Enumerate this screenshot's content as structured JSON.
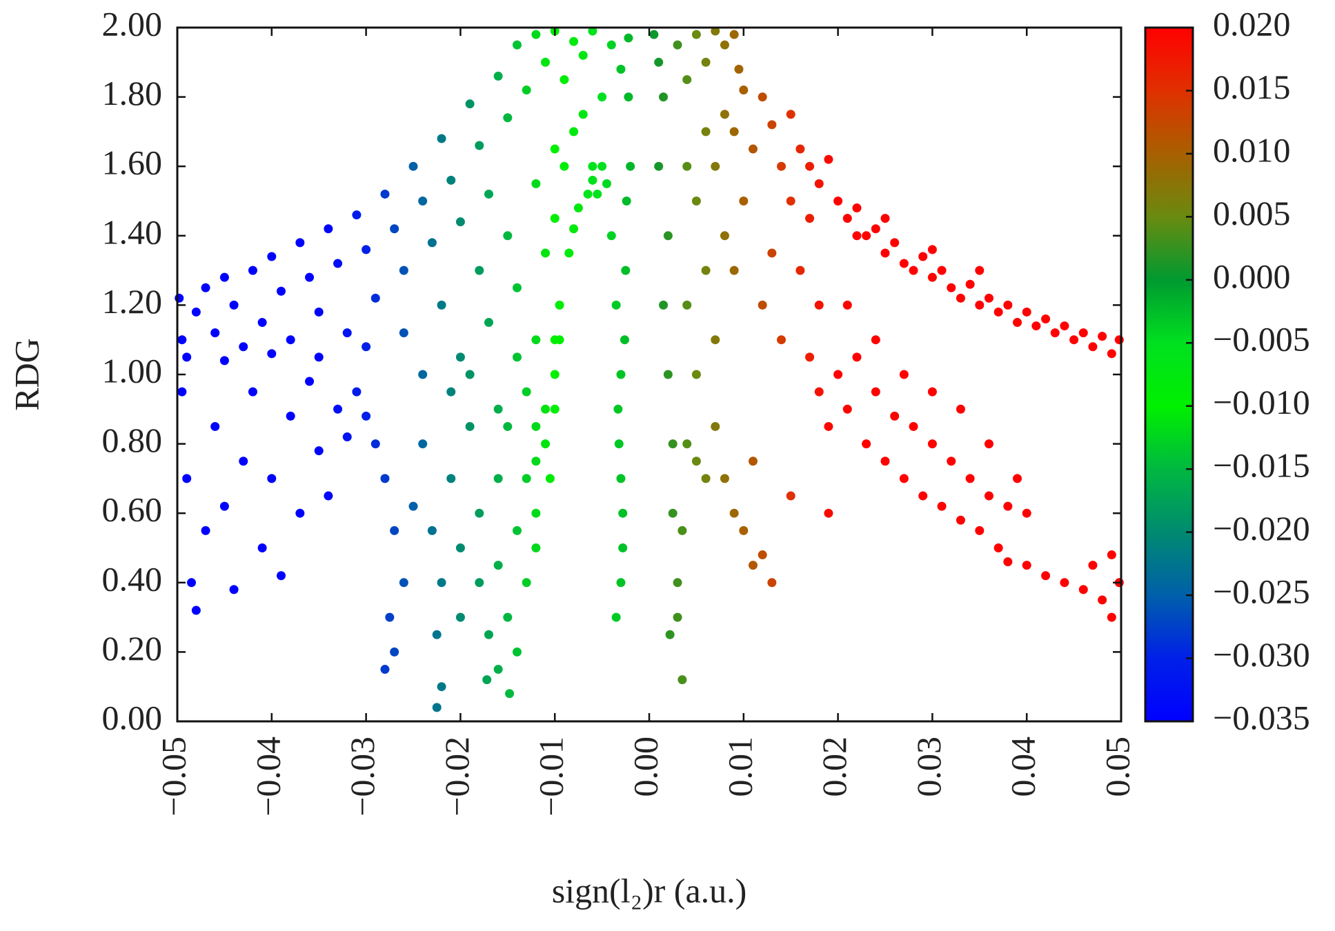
{
  "chart_data": {
    "type": "scatter",
    "x_label": "sign(l₂)r (a.u.)",
    "y_label": "RDG",
    "xlim": [
      -0.05,
      0.05
    ],
    "ylim": [
      0,
      2
    ],
    "xticks": [
      {
        "value": -0.05,
        "label": "−0.05"
      },
      {
        "value": -0.04,
        "label": "−0.04"
      },
      {
        "value": -0.03,
        "label": "−0.03"
      },
      {
        "value": -0.02,
        "label": "−0.02"
      },
      {
        "value": -0.01,
        "label": "−0.01"
      },
      {
        "value": 0,
        "label": "0.00"
      },
      0.01,
      0.02,
      0.03,
      0.04,
      0.05
    ],
    "yticks": [
      {
        "value": 0,
        "label": "0.00"
      },
      {
        "value": 0.2,
        "label": "0.20"
      },
      {
        "value": 0.4,
        "label": "0.40"
      },
      {
        "value": 0.6,
        "label": "0.60"
      },
      {
        "value": 0.8,
        "label": "0.80"
      },
      {
        "value": 1,
        "label": "1.00"
      },
      {
        "value": 1.2,
        "label": "1.20"
      },
      {
        "value": 1.4,
        "label": "1.40"
      },
      {
        "value": 1.6,
        "label": "1.60"
      },
      {
        "value": 1.8,
        "label": "1.80"
      },
      {
        "value": 2,
        "label": "2.00"
      }
    ],
    "colorbar": {
      "lim": [
        -0.035,
        0.02
      ],
      "ticks": [
        {
          "value": 0.02,
          "label": "0.020"
        },
        0.015,
        {
          "value": 0.01,
          "label": "0.010"
        },
        0.005,
        {
          "value": 0,
          "label": "0.000"
        },
        {
          "value": -0.005,
          "label": "−0.005"
        },
        {
          "value": -0.01,
          "label": "−0.010"
        },
        {
          "value": -0.015,
          "label": "−0.015"
        },
        {
          "value": -0.02,
          "label": "−0.020"
        },
        {
          "value": -0.025,
          "label": "−0.025"
        },
        {
          "value": -0.03,
          "label": "−0.030"
        },
        {
          "value": -0.035,
          "label": "−0.035"
        }
      ],
      "colors": [
        "#0000ff",
        "#0020e8",
        "#0060aa",
        "#008a70",
        "#00b840",
        "#00f000",
        "#00e020",
        "#009a30",
        "#6a8a10",
        "#a86000",
        "#e03000",
        "#ff0000"
      ]
    },
    "x": [
      -0.0498,
      -0.0495,
      -0.049,
      -0.048,
      -0.047,
      -0.046,
      -0.045,
      -0.044,
      -0.043,
      -0.042,
      -0.041,
      -0.04,
      -0.039,
      -0.038,
      -0.037,
      -0.036,
      -0.035,
      -0.034,
      -0.033,
      -0.032,
      -0.031,
      -0.03,
      -0.029,
      -0.028,
      -0.027,
      -0.026,
      -0.025,
      -0.024,
      -0.023,
      -0.022,
      -0.021,
      -0.02,
      -0.019,
      -0.018,
      -0.017,
      -0.016,
      -0.015,
      -0.014,
      -0.013,
      -0.012,
      -0.011,
      -0.01,
      -0.009,
      -0.008,
      -0.007,
      -0.006,
      -0.005,
      -0.004,
      -0.003,
      -0.0022,
      -0.045,
      -0.04,
      -0.035,
      -0.03,
      -0.026,
      -0.022,
      -0.018,
      -0.015,
      -0.012,
      -0.01,
      -0.02,
      -0.017,
      -0.014,
      -0.012,
      -0.011,
      -0.01,
      -0.009,
      -0.008,
      -0.007,
      -0.006,
      -0.024,
      -0.021,
      -0.019,
      -0.016,
      -0.014,
      -0.013,
      -0.012,
      -0.011,
      -0.01,
      -0.0095,
      -0.0495,
      -0.049,
      -0.0485,
      -0.048,
      -0.047,
      -0.046,
      -0.045,
      -0.044,
      -0.043,
      -0.042,
      -0.041,
      -0.04,
      -0.039,
      -0.038,
      -0.037,
      -0.036,
      -0.035,
      -0.034,
      -0.033,
      -0.032,
      -0.031,
      -0.03,
      -0.029,
      -0.028,
      -0.027,
      -0.0275,
      -0.027,
      -0.028,
      -0.026,
      -0.025,
      -0.024,
      -0.023,
      -0.022,
      -0.0225,
      -0.022,
      -0.0225,
      -0.021,
      -0.02,
      -0.02,
      -0.019,
      -0.018,
      -0.018,
      -0.017,
      -0.0172,
      -0.016,
      -0.016,
      -0.015,
      -0.0148,
      -0.015,
      -0.014,
      -0.013,
      -0.013,
      -0.012,
      -0.012,
      -0.011,
      -0.01,
      -0.0105,
      -0.012,
      -0.014,
      -0.016,
      -0.0095,
      -0.0085,
      -0.0075,
      -0.01,
      -0.0065,
      -0.006,
      -0.0055,
      -0.0045,
      -0.005,
      -0.008,
      -0.004,
      -0.0035,
      -0.003,
      -0.0032,
      -0.0028,
      -0.003,
      -0.0035,
      -0.0025,
      -0.002,
      -0.0022,
      -0.0028,
      -0.0033,
      -0.0026,
      -0.0024,
      -0.003,
      0.0005,
      0.001,
      0.0015,
      0.001,
      0.002,
      0.0015,
      0.002,
      0.0025,
      0.0025,
      0.003,
      0.0022,
      0.0035,
      0.003,
      0.0035,
      0.004,
      0.003,
      0.004,
      0.005,
      0.006,
      0.007,
      0.008,
      0.009,
      0.0095,
      0.004,
      0.005,
      0.006,
      0.007,
      0.008,
      0.009,
      0.01,
      0.004,
      0.005,
      0.006,
      0.007,
      0.008,
      0.009,
      0.01,
      0.011,
      0.012,
      0.013,
      0.005,
      0.006,
      0.007,
      0.008,
      0.009,
      0.01,
      0.011,
      0.012,
      0.013,
      0.011,
      0.012,
      0.013,
      0.014,
      0.014,
      0.015,
      0.015,
      0.016,
      0.017,
      0.018,
      0.019,
      0.015,
      0.016,
      0.017,
      0.018,
      0.019,
      0.02,
      0.021,
      0.022,
      0.023,
      0.024,
      0.025,
      0.026,
      0.027,
      0.028,
      0.029,
      0.03,
      0.031,
      0.032,
      0.033,
      0.034,
      0.035,
      0.036,
      0.037,
      0.038,
      0.039,
      0.04,
      0.041,
      0.042,
      0.043,
      0.044,
      0.045,
      0.046,
      0.047,
      0.048,
      0.049,
      0.0498,
      0.022,
      0.025,
      0.03,
      0.035,
      0.017,
      0.018,
      0.019,
      0.02,
      0.021,
      0.022,
      0.023,
      0.024,
      0.025,
      0.026,
      0.027,
      0.028,
      0.029,
      0.03,
      0.031,
      0.032,
      0.033,
      0.034,
      0.035,
      0.036,
      0.037,
      0.038,
      0.04,
      0.039,
      0.036,
      0.033,
      0.03,
      0.027,
      0.024,
      0.021,
      0.038,
      0.04,
      0.042,
      0.044,
      0.046,
      0.048,
      0.049,
      0.047,
      0.049,
      0.0498
    ],
    "values": [
      1.22,
      1.1,
      1.05,
      1.18,
      1.25,
      1.12,
      1.28,
      1.2,
      1.08,
      1.3,
      1.15,
      1.34,
      1.24,
      1.1,
      1.38,
      1.28,
      1.18,
      1.42,
      1.32,
      1.12,
      1.46,
      1.36,
      1.22,
      1.52,
      1.42,
      1.3,
      1.6,
      1.5,
      1.38,
      1.68,
      1.56,
      1.44,
      1.78,
      1.66,
      1.52,
      1.86,
      1.74,
      1.95,
      1.82,
      1.98,
      1.9,
      1.99,
      1.85,
      1.96,
      1.92,
      1.99,
      1.8,
      1.95,
      1.88,
      1.97,
      1.04,
      1.06,
      1.05,
      1.08,
      1.12,
      1.2,
      1.3,
      1.4,
      1.55,
      1.65,
      1.05,
      1.15,
      1.25,
      1.1,
      1.35,
      1.45,
      1.6,
      1.7,
      1.75,
      1.6,
      1.0,
      0.95,
      1.0,
      0.9,
      1.05,
      0.95,
      0.85,
      0.9,
      1.0,
      1.2,
      0.95,
      0.7,
      0.4,
      0.32,
      0.55,
      0.85,
      0.62,
      0.38,
      0.75,
      0.95,
      0.5,
      0.7,
      0.42,
      0.88,
      0.6,
      0.98,
      0.78,
      0.65,
      0.9,
      0.82,
      0.95,
      0.88,
      0.8,
      0.7,
      0.55,
      0.3,
      0.2,
      0.15,
      0.4,
      0.62,
      0.8,
      0.55,
      0.4,
      0.25,
      0.1,
      0.04,
      0.7,
      0.5,
      0.3,
      0.85,
      0.6,
      0.4,
      0.25,
      0.12,
      0.7,
      0.45,
      0.3,
      0.08,
      0.85,
      0.55,
      0.4,
      0.7,
      0.6,
      0.75,
      0.8,
      0.9,
      0.7,
      0.5,
      0.2,
      0.15,
      1.1,
      1.35,
      1.48,
      1.1,
      1.52,
      1.56,
      1.52,
      1.55,
      1.6,
      1.42,
      1.4,
      1.2,
      1.0,
      0.8,
      0.6,
      0.4,
      0.3,
      1.3,
      1.6,
      1.8,
      0.5,
      0.9,
      1.1,
      1.5,
      0.7,
      1.98,
      1.9,
      1.8,
      1.6,
      1.4,
      1.2,
      1.0,
      0.8,
      0.6,
      0.4,
      0.25,
      0.12,
      0.3,
      0.55,
      0.8,
      1.95,
      1.85,
      1.98,
      1.9,
      1.99,
      1.95,
      1.98,
      1.88,
      1.6,
      1.5,
      1.7,
      1.6,
      1.75,
      1.7,
      1.82,
      1.2,
      1.0,
      1.3,
      1.1,
      1.4,
      1.3,
      1.5,
      1.65,
      1.8,
      1.72,
      0.75,
      0.7,
      0.85,
      0.7,
      0.6,
      0.55,
      0.45,
      0.48,
      0.4,
      0.75,
      1.2,
      1.35,
      1.6,
      1.1,
      1.5,
      0.65,
      1.3,
      1.45,
      1.2,
      0.6,
      1.75,
      1.65,
      1.6,
      1.55,
      1.62,
      1.5,
      1.45,
      1.48,
      1.4,
      1.42,
      1.35,
      1.38,
      1.32,
      1.3,
      1.34,
      1.28,
      1.3,
      1.25,
      1.22,
      1.26,
      1.2,
      1.22,
      1.18,
      1.2,
      1.15,
      1.18,
      1.14,
      1.16,
      1.12,
      1.14,
      1.1,
      1.12,
      1.08,
      1.11,
      1.06,
      1.1,
      1.4,
      1.45,
      1.36,
      1.3,
      1.05,
      0.95,
      0.85,
      1.0,
      0.9,
      1.05,
      0.8,
      0.95,
      0.75,
      0.88,
      0.7,
      0.85,
      0.65,
      0.8,
      0.62,
      0.75,
      0.58,
      0.7,
      0.55,
      0.65,
      0.5,
      0.62,
      0.6,
      0.7,
      0.8,
      0.9,
      0.95,
      1.0,
      1.1,
      1.2,
      0.46,
      0.45,
      0.42,
      0.4,
      0.38,
      0.35,
      0.3,
      0.45,
      0.48,
      0.4
    ]
  }
}
